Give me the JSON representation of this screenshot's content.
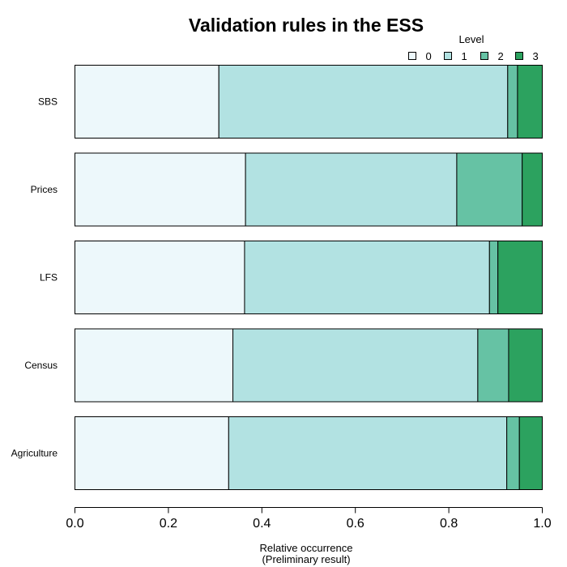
{
  "chart_data": {
    "type": "bar",
    "orientation": "horizontal",
    "stacked": true,
    "title": "Validation rules in the ESS",
    "xlabel": "Relative occurrence",
    "xlabel_note": "(Preliminary result)",
    "ylabel": "",
    "xlim": [
      0,
      1
    ],
    "xticks": [
      "0.0",
      "0.2",
      "0.4",
      "0.6",
      "0.8",
      "1.0"
    ],
    "legend_title": "Level",
    "legend_position": "top-right",
    "grid": false,
    "categories": [
      "SBS",
      "Prices",
      "LFS",
      "Census",
      "Agriculture"
    ],
    "series": [
      {
        "name": "0",
        "color": "#edf8fb",
        "values": [
          0.308,
          0.365,
          0.363,
          0.338,
          0.329
        ]
      },
      {
        "name": "1",
        "color": "#b2e2e2",
        "values": [
          0.618,
          0.452,
          0.524,
          0.524,
          0.595
        ]
      },
      {
        "name": "2",
        "color": "#66c2a4",
        "values": [
          0.021,
          0.14,
          0.018,
          0.066,
          0.027
        ]
      },
      {
        "name": "3",
        "color": "#2ca25f",
        "values": [
          0.053,
          0.043,
          0.095,
          0.072,
          0.049
        ]
      }
    ]
  }
}
